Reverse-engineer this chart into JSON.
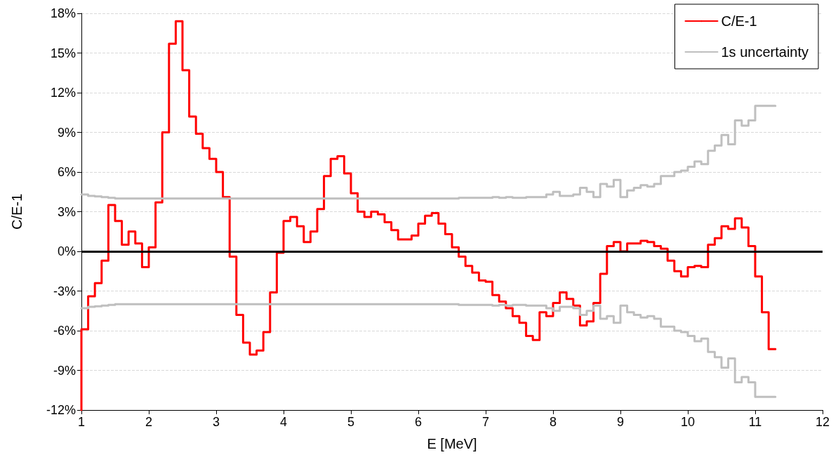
{
  "chart_data": {
    "type": "step",
    "xlabel": "E [MeV]",
    "ylabel": "C/E-1",
    "xlim": [
      1,
      12
    ],
    "xticks": [
      1,
      2,
      3,
      4,
      5,
      6,
      7,
      8,
      9,
      10,
      11,
      12
    ],
    "ylim": [
      -12,
      18
    ],
    "yticks": [
      {
        "value": -12,
        "label": "-12%"
      },
      {
        "value": -9,
        "label": "-9%"
      },
      {
        "value": -6,
        "label": "-6%"
      },
      {
        "value": -3,
        "label": "-3%"
      },
      {
        "value": 0,
        "label": "0%"
      },
      {
        "value": 3,
        "label": "3%"
      },
      {
        "value": 6,
        "label": "6%"
      },
      {
        "value": 9,
        "label": "9%"
      },
      {
        "value": 12,
        "label": "12%"
      },
      {
        "value": 15,
        "label": "15%"
      },
      {
        "value": 18,
        "label": "18%"
      }
    ],
    "grid": "y",
    "legend": "top right",
    "marker": "none",
    "line_style": "solid",
    "ref_lines": [
      {
        "axis": "y",
        "value": 0,
        "label": null,
        "color": "#000000"
      }
    ],
    "series": [
      {
        "name": "C/E-1",
        "color": "#ff0000",
        "x": [
          1,
          1,
          1.1,
          1.2,
          1.3,
          1.4,
          1.5,
          1.6,
          1.7,
          1.8,
          1.9,
          2,
          2.1,
          2.2,
          2.3,
          2.4,
          2.5,
          2.6,
          2.7,
          2.8,
          2.9,
          3,
          3.1,
          3.2,
          3.3,
          3.4,
          3.5,
          3.6,
          3.7,
          3.8,
          3.9,
          4,
          4.1,
          4.2,
          4.3,
          4.4,
          4.5,
          4.6,
          4.7,
          4.8,
          4.9,
          5,
          5.1,
          5.2,
          5.3,
          5.4,
          5.5,
          5.6,
          5.7,
          5.8,
          5.9,
          6,
          6.1,
          6.2,
          6.3,
          6.4,
          6.5,
          6.6,
          6.7,
          6.8,
          6.9,
          7,
          7.1,
          7.2,
          7.3,
          7.4,
          7.5,
          7.6,
          7.7,
          7.8,
          7.9,
          8,
          8.1,
          8.2,
          8.3,
          8.4,
          8.5,
          8.6,
          8.7,
          8.8,
          8.9,
          9,
          9.1,
          9.2,
          9.3,
          9.4,
          9.5,
          9.6,
          9.7,
          9.8,
          9.9,
          10,
          10.1,
          10.2,
          10.3,
          10.4,
          10.5,
          10.6,
          10.7,
          10.8,
          10.9,
          11,
          11.1,
          11.2,
          11.3
        ],
        "values": [
          -12,
          -5.9,
          -3.4,
          -2.4,
          -0.7,
          3.5,
          2.3,
          0.5,
          1.5,
          0.6,
          -1.2,
          0.3,
          3.7,
          9.0,
          15.7,
          17.4,
          13.7,
          10.2,
          8.9,
          7.8,
          7.0,
          6.0,
          4.1,
          -0.4,
          -4.8,
          -6.9,
          -7.8,
          -7.5,
          -6.1,
          -3.1,
          -0.1,
          2.3,
          2.6,
          1.9,
          0.7,
          1.5,
          3.2,
          5.7,
          7.0,
          7.2,
          5.9,
          4.4,
          3.0,
          2.6,
          3.0,
          2.8,
          2.2,
          1.6,
          0.9,
          0.9,
          1.2,
          2.1,
          2.7,
          2.9,
          2.1,
          1.3,
          0.3,
          -0.4,
          -1.1,
          -1.6,
          -2.2,
          -2.3,
          -3.3,
          -3.8,
          -4.3,
          -4.9,
          -5.4,
          -6.4,
          -6.7,
          -4.6,
          -4.9,
          -3.9,
          -3.1,
          -3.6,
          -4.1,
          -5.6,
          -5.3,
          -3.9,
          -1.7,
          0.4,
          0.7,
          0.0,
          0.6,
          0.6,
          0.8,
          0.7,
          0.4,
          0.2,
          -0.7,
          -1.5,
          -1.9,
          -1.2,
          -1.1,
          -1.2,
          0.5,
          1.0,
          1.9,
          1.7,
          2.5,
          1.8,
          0.4,
          -1.9,
          -4.6,
          -7.4,
          -7.4
        ]
      },
      {
        "name": "1s uncertainty",
        "color": "#bfbfbf",
        "x": [
          1,
          1.1,
          1.2,
          1.3,
          1.4,
          1.5,
          1.6,
          1.7,
          1.8,
          1.9,
          2,
          2.1,
          2.2,
          2.3,
          2.4,
          2.5,
          2.6,
          2.7,
          2.8,
          2.9,
          3,
          3.1,
          3.2,
          3.3,
          3.4,
          3.5,
          3.6,
          3.7,
          3.8,
          3.9,
          4,
          4.1,
          4.2,
          4.3,
          4.4,
          4.5,
          4.6,
          4.7,
          4.8,
          4.9,
          5,
          5.1,
          5.2,
          5.3,
          5.4,
          5.5,
          5.6,
          5.7,
          5.8,
          5.9,
          6,
          6.1,
          6.2,
          6.3,
          6.4,
          6.5,
          6.6,
          6.7,
          6.8,
          6.9,
          7,
          7.1,
          7.2,
          7.3,
          7.4,
          7.5,
          7.6,
          7.7,
          7.8,
          7.9,
          8,
          8.1,
          8.2,
          8.3,
          8.4,
          8.5,
          8.6,
          8.7,
          8.8,
          8.9,
          9,
          9.1,
          9.2,
          9.3,
          9.4,
          9.5,
          9.6,
          9.7,
          9.8,
          9.9,
          10,
          10.1,
          10.2,
          10.3,
          10.4,
          10.5,
          10.6,
          10.7,
          10.8,
          10.9,
          11,
          11.1,
          11.2,
          11.3
        ],
        "values": [
          4.3,
          4.2,
          4.15,
          4.1,
          4.05,
          4.0,
          4.0,
          4.0,
          4.0,
          4.0,
          4.0,
          4.0,
          4.0,
          4.0,
          4.0,
          4.0,
          4.0,
          4.0,
          4.0,
          4.0,
          4.0,
          4.0,
          4.0,
          4.0,
          4.0,
          4.0,
          4.0,
          4.0,
          4.0,
          4.0,
          4.0,
          4.0,
          4.0,
          4.0,
          4.0,
          4.0,
          4.0,
          4.0,
          4.0,
          4.0,
          4.0,
          4.0,
          4.0,
          4.0,
          4.0,
          4.0,
          4.0,
          4.0,
          4.0,
          4.0,
          4.0,
          4.0,
          4.0,
          4.0,
          4.0,
          4.0,
          4.05,
          4.05,
          4.05,
          4.05,
          4.05,
          4.1,
          4.05,
          4.1,
          4.05,
          4.05,
          4.1,
          4.1,
          4.1,
          4.3,
          4.5,
          4.2,
          4.2,
          4.3,
          4.8,
          4.5,
          4.1,
          5.1,
          4.9,
          5.4,
          4.1,
          4.6,
          4.8,
          5.0,
          4.9,
          5.1,
          5.7,
          5.7,
          6.0,
          6.1,
          6.4,
          6.8,
          6.6,
          7.6,
          8.0,
          8.8,
          8.1,
          9.9,
          9.5,
          9.9,
          11.0,
          11.0,
          11.0,
          11.0
        ]
      },
      {
        "color": "#bfbfbf",
        "x": [
          1,
          1.1,
          1.2,
          1.3,
          1.4,
          1.5,
          1.6,
          1.7,
          1.8,
          1.9,
          2,
          2.1,
          2.2,
          2.3,
          2.4,
          2.5,
          2.6,
          2.7,
          2.8,
          2.9,
          3,
          3.1,
          3.2,
          3.3,
          3.4,
          3.5,
          3.6,
          3.7,
          3.8,
          3.9,
          4,
          4.1,
          4.2,
          4.3,
          4.4,
          4.5,
          4.6,
          4.7,
          4.8,
          4.9,
          5,
          5.1,
          5.2,
          5.3,
          5.4,
          5.5,
          5.6,
          5.7,
          5.8,
          5.9,
          6,
          6.1,
          6.2,
          6.3,
          6.4,
          6.5,
          6.6,
          6.7,
          6.8,
          6.9,
          7,
          7.1,
          7.2,
          7.3,
          7.4,
          7.5,
          7.6,
          7.7,
          7.8,
          7.9,
          8,
          8.1,
          8.2,
          8.3,
          8.4,
          8.5,
          8.6,
          8.7,
          8.8,
          8.9,
          9,
          9.1,
          9.2,
          9.3,
          9.4,
          9.5,
          9.6,
          9.7,
          9.8,
          9.9,
          10,
          10.1,
          10.2,
          10.3,
          10.4,
          10.5,
          10.6,
          10.7,
          10.8,
          10.9,
          11,
          11.1,
          11.2,
          11.3
        ],
        "values": [
          -4.3,
          -4.2,
          -4.15,
          -4.1,
          -4.05,
          -4.0,
          -4.0,
          -4.0,
          -4.0,
          -4.0,
          -4.0,
          -4.0,
          -4.0,
          -4.0,
          -4.0,
          -4.0,
          -4.0,
          -4.0,
          -4.0,
          -4.0,
          -4.0,
          -4.0,
          -4.0,
          -4.0,
          -4.0,
          -4.0,
          -4.0,
          -4.0,
          -4.0,
          -4.0,
          -4.0,
          -4.0,
          -4.0,
          -4.0,
          -4.0,
          -4.0,
          -4.0,
          -4.0,
          -4.0,
          -4.0,
          -4.0,
          -4.0,
          -4.0,
          -4.0,
          -4.0,
          -4.0,
          -4.0,
          -4.0,
          -4.0,
          -4.0,
          -4.0,
          -4.0,
          -4.0,
          -4.0,
          -4.0,
          -4.0,
          -4.05,
          -4.05,
          -4.05,
          -4.05,
          -4.05,
          -4.1,
          -4.05,
          -4.1,
          -4.05,
          -4.05,
          -4.1,
          -4.1,
          -4.1,
          -4.3,
          -4.5,
          -4.2,
          -4.2,
          -4.3,
          -4.8,
          -4.5,
          -4.1,
          -5.1,
          -4.9,
          -5.4,
          -4.1,
          -4.6,
          -4.8,
          -5.0,
          -4.9,
          -5.1,
          -5.7,
          -5.7,
          -6.0,
          -6.1,
          -6.4,
          -6.8,
          -6.6,
          -7.6,
          -8.0,
          -8.8,
          -8.1,
          -9.9,
          -9.5,
          -9.9,
          -11.0,
          -11.0,
          -11.0,
          -11.0
        ]
      }
    ]
  }
}
